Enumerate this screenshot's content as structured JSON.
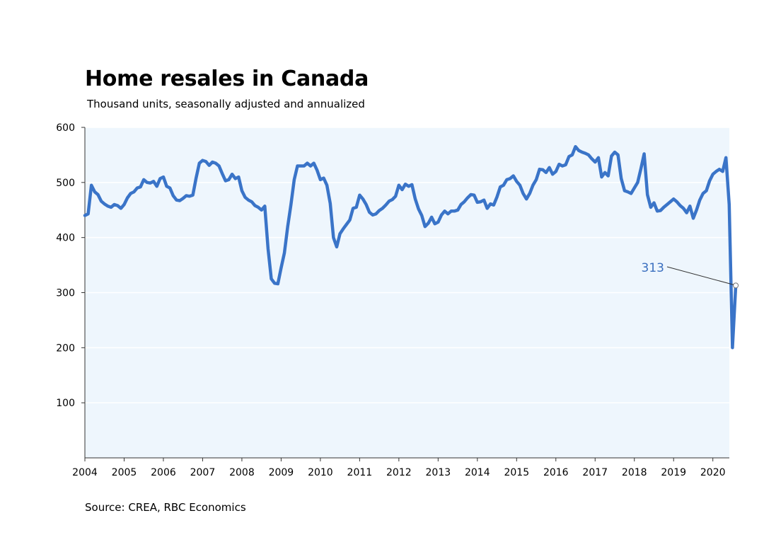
{
  "chart_data": {
    "type": "line",
    "title": "Home resales in Canada",
    "subtitle": "Thousand units, seasonally adjusted and annualized",
    "source": "Source: CREA, RBC Economics",
    "xlabel": "",
    "ylabel": "",
    "xlim": [
      2004,
      2020.42
    ],
    "ylim": [
      0,
      600
    ],
    "y_ticks": [
      100,
      200,
      300,
      400,
      500,
      600
    ],
    "x_ticks": [
      "2004",
      "2005",
      "2006",
      "2007",
      "2008",
      "2009",
      "2010",
      "2011",
      "2012",
      "2013",
      "2014",
      "2015",
      "2016",
      "2017",
      "2018",
      "2019",
      "2020"
    ],
    "grid": "horizontal",
    "legend": "none",
    "colors": {
      "line": "#3a74c8",
      "plot_background": "#eef6fd",
      "annotation": "#3a6fbf"
    },
    "series": [
      {
        "points": [
          [
            "2004-01",
            440
          ],
          [
            "2004-02",
            443
          ],
          [
            "2004-03",
            495
          ],
          [
            "2004-04",
            483
          ],
          [
            "2004-05",
            478
          ],
          [
            "2004-06",
            466
          ],
          [
            "2004-07",
            461
          ],
          [
            "2004-08",
            457
          ],
          [
            "2004-09",
            455
          ],
          [
            "2004-10",
            460
          ],
          [
            "2004-11",
            458
          ],
          [
            "2004-12",
            453
          ],
          [
            "2005-01",
            460
          ],
          [
            "2005-02",
            472
          ],
          [
            "2005-03",
            480
          ],
          [
            "2005-04",
            483
          ],
          [
            "2005-05",
            490
          ],
          [
            "2005-06",
            492
          ],
          [
            "2005-07",
            505
          ],
          [
            "2005-08",
            500
          ],
          [
            "2005-09",
            499
          ],
          [
            "2005-10",
            502
          ],
          [
            "2005-11",
            493
          ],
          [
            "2005-12",
            507
          ],
          [
            "2006-01",
            510
          ],
          [
            "2006-02",
            493
          ],
          [
            "2006-03",
            490
          ],
          [
            "2006-04",
            476
          ],
          [
            "2006-05",
            468
          ],
          [
            "2006-06",
            467
          ],
          [
            "2006-07",
            471
          ],
          [
            "2006-08",
            476
          ],
          [
            "2006-09",
            475
          ],
          [
            "2006-10",
            477
          ],
          [
            "2006-11",
            508
          ],
          [
            "2006-12",
            535
          ],
          [
            "2007-01",
            540
          ],
          [
            "2007-02",
            538
          ],
          [
            "2007-03",
            531
          ],
          [
            "2007-04",
            537
          ],
          [
            "2007-05",
            535
          ],
          [
            "2007-06",
            530
          ],
          [
            "2007-07",
            516
          ],
          [
            "2007-08",
            503
          ],
          [
            "2007-09",
            505
          ],
          [
            "2007-10",
            515
          ],
          [
            "2007-11",
            507
          ],
          [
            "2007-12",
            510
          ],
          [
            "2008-01",
            485
          ],
          [
            "2008-02",
            473
          ],
          [
            "2008-03",
            468
          ],
          [
            "2008-04",
            465
          ],
          [
            "2008-05",
            458
          ],
          [
            "2008-06",
            455
          ],
          [
            "2008-07",
            450
          ],
          [
            "2008-08",
            457
          ],
          [
            "2008-09",
            380
          ],
          [
            "2008-10",
            325
          ],
          [
            "2008-11",
            317
          ],
          [
            "2008-12",
            316
          ],
          [
            "2009-01",
            345
          ],
          [
            "2009-02",
            372
          ],
          [
            "2009-03",
            420
          ],
          [
            "2009-04",
            460
          ],
          [
            "2009-05",
            505
          ],
          [
            "2009-06",
            530
          ],
          [
            "2009-07",
            530
          ],
          [
            "2009-08",
            530
          ],
          [
            "2009-09",
            535
          ],
          [
            "2009-10",
            530
          ],
          [
            "2009-11",
            535
          ],
          [
            "2009-12",
            522
          ],
          [
            "2010-01",
            505
          ],
          [
            "2010-02",
            508
          ],
          [
            "2010-03",
            495
          ],
          [
            "2010-04",
            462
          ],
          [
            "2010-05",
            400
          ],
          [
            "2010-06",
            383
          ],
          [
            "2010-07",
            407
          ],
          [
            "2010-08",
            416
          ],
          [
            "2010-09",
            424
          ],
          [
            "2010-10",
            432
          ],
          [
            "2010-11",
            453
          ],
          [
            "2010-12",
            455
          ],
          [
            "2011-01",
            477
          ],
          [
            "2011-02",
            470
          ],
          [
            "2011-03",
            460
          ],
          [
            "2011-04",
            446
          ],
          [
            "2011-05",
            441
          ],
          [
            "2011-06",
            443
          ],
          [
            "2011-07",
            449
          ],
          [
            "2011-08",
            453
          ],
          [
            "2011-09",
            459
          ],
          [
            "2011-10",
            466
          ],
          [
            "2011-11",
            469
          ],
          [
            "2011-12",
            475
          ],
          [
            "2012-01",
            495
          ],
          [
            "2012-02",
            487
          ],
          [
            "2012-03",
            497
          ],
          [
            "2012-04",
            493
          ],
          [
            "2012-05",
            496
          ],
          [
            "2012-06",
            470
          ],
          [
            "2012-07",
            452
          ],
          [
            "2012-08",
            440
          ],
          [
            "2012-09",
            420
          ],
          [
            "2012-10",
            426
          ],
          [
            "2012-11",
            437
          ],
          [
            "2012-12",
            425
          ],
          [
            "2013-01",
            428
          ],
          [
            "2013-02",
            441
          ],
          [
            "2013-03",
            448
          ],
          [
            "2013-04",
            443
          ],
          [
            "2013-05",
            448
          ],
          [
            "2013-06",
            448
          ],
          [
            "2013-07",
            450
          ],
          [
            "2013-08",
            460
          ],
          [
            "2013-09",
            465
          ],
          [
            "2013-10",
            472
          ],
          [
            "2013-11",
            478
          ],
          [
            "2013-12",
            477
          ],
          [
            "2014-01",
            464
          ],
          [
            "2014-02",
            465
          ],
          [
            "2014-03",
            468
          ],
          [
            "2014-04",
            453
          ],
          [
            "2014-05",
            461
          ],
          [
            "2014-06",
            459
          ],
          [
            "2014-07",
            474
          ],
          [
            "2014-08",
            492
          ],
          [
            "2014-09",
            495
          ],
          [
            "2014-10",
            505
          ],
          [
            "2014-11",
            507
          ],
          [
            "2014-12",
            512
          ],
          [
            "2015-01",
            502
          ],
          [
            "2015-02",
            495
          ],
          [
            "2015-03",
            480
          ],
          [
            "2015-04",
            470
          ],
          [
            "2015-05",
            480
          ],
          [
            "2015-06",
            495
          ],
          [
            "2015-07",
            505
          ],
          [
            "2015-08",
            524
          ],
          [
            "2015-09",
            523
          ],
          [
            "2015-10",
            518
          ],
          [
            "2015-11",
            527
          ],
          [
            "2015-12",
            515
          ],
          [
            "2016-01",
            520
          ],
          [
            "2016-02",
            533
          ],
          [
            "2016-03",
            530
          ],
          [
            "2016-04",
            532
          ],
          [
            "2016-05",
            547
          ],
          [
            "2016-06",
            550
          ],
          [
            "2016-07",
            565
          ],
          [
            "2016-08",
            558
          ],
          [
            "2016-09",
            555
          ],
          [
            "2016-10",
            553
          ],
          [
            "2016-11",
            550
          ],
          [
            "2016-12",
            543
          ],
          [
            "2017-01",
            537
          ],
          [
            "2017-02",
            545
          ],
          [
            "2017-03",
            510
          ],
          [
            "2017-04",
            518
          ],
          [
            "2017-05",
            512
          ],
          [
            "2017-06",
            548
          ],
          [
            "2017-07",
            555
          ],
          [
            "2017-08",
            550
          ],
          [
            "2017-09",
            507
          ],
          [
            "2017-10",
            485
          ],
          [
            "2017-11",
            483
          ],
          [
            "2017-12",
            480
          ],
          [
            "2018-01",
            490
          ],
          [
            "2018-02",
            500
          ],
          [
            "2018-03",
            525
          ],
          [
            "2018-04",
            552
          ],
          [
            "2018-05",
            478
          ],
          [
            "2018-06",
            455
          ],
          [
            "2018-07",
            463
          ],
          [
            "2018-08",
            448
          ],
          [
            "2018-09",
            449
          ],
          [
            "2018-10",
            455
          ],
          [
            "2018-11",
            460
          ],
          [
            "2018-12",
            465
          ],
          [
            "2019-01",
            470
          ],
          [
            "2019-02",
            465
          ],
          [
            "2019-03",
            458
          ],
          [
            "2019-04",
            453
          ],
          [
            "2019-05",
            445
          ],
          [
            "2019-06",
            457
          ],
          [
            "2019-07",
            435
          ],
          [
            "2019-08",
            450
          ],
          [
            "2019-09",
            468
          ],
          [
            "2019-10",
            480
          ],
          [
            "2019-11",
            485
          ],
          [
            "2019-12",
            503
          ],
          [
            "2020-01",
            515
          ],
          [
            "2020-02",
            520
          ],
          [
            "2020-03",
            524
          ],
          [
            "2020-04",
            520
          ],
          [
            "2020-05",
            545
          ],
          [
            "2020-06",
            460
          ],
          [
            "2020-07",
            200
          ],
          [
            "2020-08",
            313
          ]
        ]
      }
    ],
    "annotations": [
      {
        "text": "313",
        "x": "2020-08",
        "y": 313
      }
    ]
  }
}
